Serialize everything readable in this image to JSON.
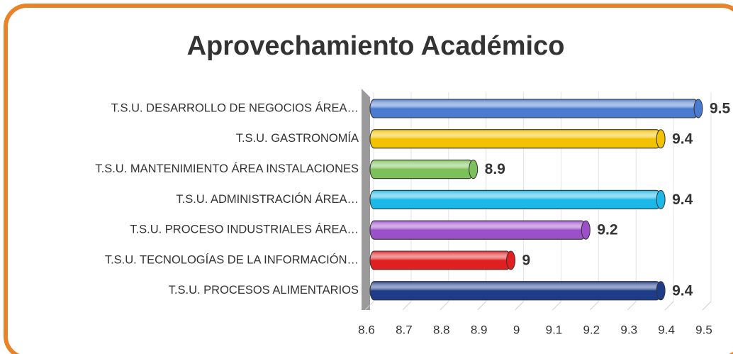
{
  "chart_data": {
    "type": "bar",
    "orientation": "horizontal",
    "title": "Aprovechamiento Académico",
    "categories": [
      "T.S.U. DESARROLLO DE NEGOCIOS ÁREA…",
      "T.S.U. GASTRONOMÍA",
      "T.S.U. MANTENIMIENTO ÁREA INSTALACIONES",
      "T.S.U. ADMINISTRACIÓN ÁREA…",
      "T.S.U. PROCESO INDUSTRIALES ÁREA…",
      "T.S.U. TECNOLOGÍAS DE LA INFORMACIÓN…",
      "T.S.U. PROCESOS ALIMENTARIOS"
    ],
    "values": [
      9.5,
      9.4,
      8.9,
      9.4,
      9.2,
      9,
      9.4
    ],
    "colors": [
      "#4a7bd0",
      "#f2c200",
      "#7cc05a",
      "#1cb8e8",
      "#9b4fc8",
      "#e02020",
      "#1f3c88"
    ],
    "xlim": [
      8.6,
      9.5
    ],
    "xticks": [
      8.6,
      8.7,
      8.8,
      8.9,
      9,
      9.1,
      9.2,
      9.3,
      9.4,
      9.5
    ],
    "grid": true
  }
}
